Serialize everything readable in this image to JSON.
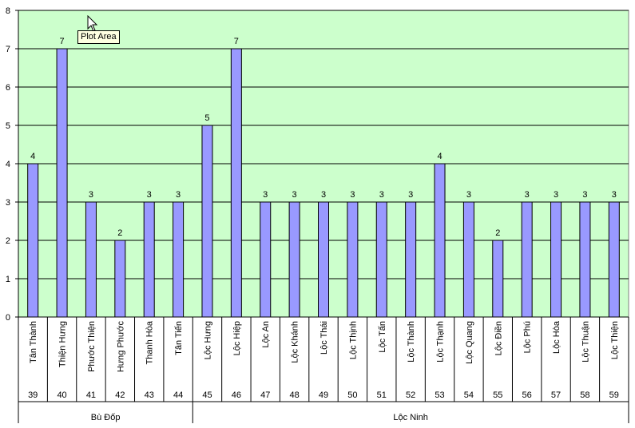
{
  "chart_data": {
    "type": "bar",
    "ylim": [
      0,
      8
    ],
    "y_ticks": [
      0,
      1,
      2,
      3,
      4,
      5,
      6,
      7,
      8
    ],
    "grid": true,
    "data_labels": true,
    "categories": [
      {
        "name": "Tân Thành",
        "code": "39",
        "value": 4
      },
      {
        "name": "Thiện Hưng",
        "code": "40",
        "value": 7
      },
      {
        "name": "Phước Thiện",
        "code": "41",
        "value": 3
      },
      {
        "name": "Hưng Phước",
        "code": "42",
        "value": 2
      },
      {
        "name": "Thanh Hòa",
        "code": "43",
        "value": 3
      },
      {
        "name": "Tân Tiến",
        "code": "44",
        "value": 3
      },
      {
        "name": "Lộc Hưng",
        "code": "45",
        "value": 5
      },
      {
        "name": "Lộc Hiệp",
        "code": "46",
        "value": 7
      },
      {
        "name": "Lộc An",
        "code": "47",
        "value": 3
      },
      {
        "name": "Lộc Khánh",
        "code": "48",
        "value": 3
      },
      {
        "name": "Lộc Thái",
        "code": "49",
        "value": 3
      },
      {
        "name": "Lộc Thịnh",
        "code": "50",
        "value": 3
      },
      {
        "name": "Lộc Tấn",
        "code": "51",
        "value": 3
      },
      {
        "name": "Lộc Thành",
        "code": "52",
        "value": 3
      },
      {
        "name": "Lộc Thạnh",
        "code": "53",
        "value": 4
      },
      {
        "name": "Lộc Quang",
        "code": "54",
        "value": 3
      },
      {
        "name": "Lộc Điền",
        "code": "55",
        "value": 2
      },
      {
        "name": "Lộc Phú",
        "code": "56",
        "value": 3
      },
      {
        "name": "Lộc Hòa",
        "code": "57",
        "value": 3
      },
      {
        "name": "Lộc Thuận",
        "code": "58",
        "value": 3
      },
      {
        "name": "Lộc Thiện",
        "code": "59",
        "value": 3
      }
    ],
    "groups": [
      {
        "name": "Bù Đốp",
        "start": 0,
        "end": 5
      },
      {
        "name": "Lộc Ninh",
        "start": 6,
        "end": 20
      }
    ]
  },
  "colors": {
    "plot_background": "#ccffcc",
    "bar_fill": "#9999ff",
    "bar_stroke": "#000000",
    "gridline": "#000000"
  },
  "tooltip": {
    "text": "Plot Area"
  },
  "cursor": {
    "icon": "mouse-pointer-icon"
  }
}
